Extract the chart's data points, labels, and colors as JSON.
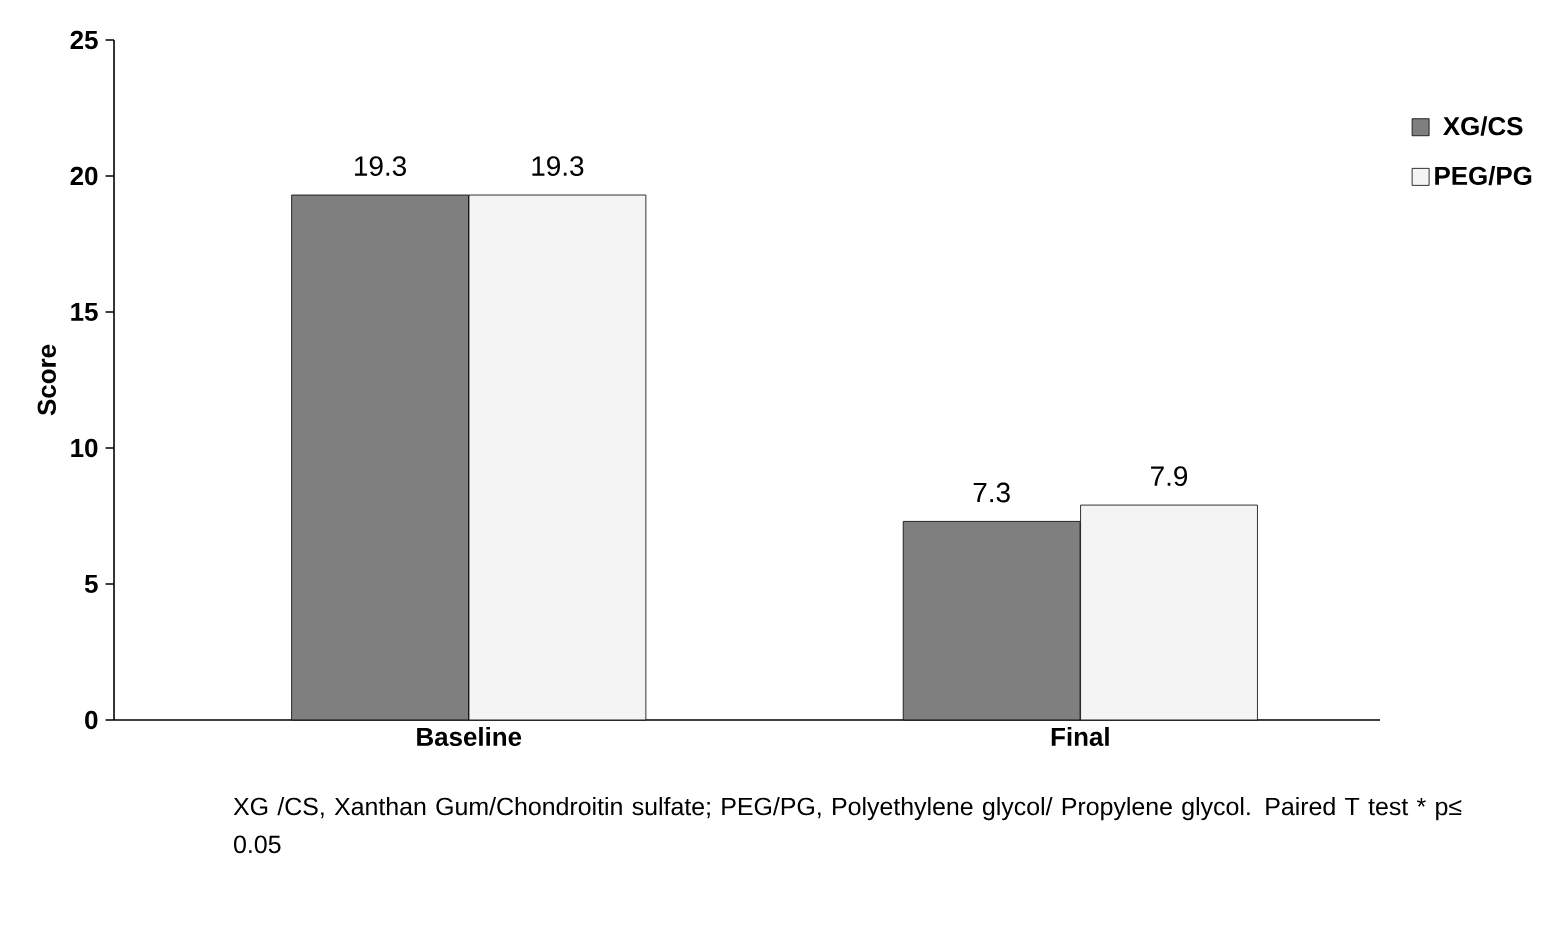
{
  "chart_data": {
    "type": "bar",
    "categories": [
      "Baseline",
      "Final"
    ],
    "series": [
      {
        "name": "XG/CS",
        "color": "#7f7f7f",
        "values": [
          19.3,
          7.3
        ]
      },
      {
        "name": "PEG/PG",
        "color": "#f4f4f4",
        "values": [
          19.3,
          7.9
        ]
      }
    ],
    "ylabel": "Score",
    "ylim": [
      0,
      25
    ],
    "yticks": [
      0,
      5,
      10,
      15,
      20,
      25
    ],
    "data_labels": true,
    "legend": "top right",
    "grid": false,
    "annotations": [
      "XG /CS, Xanthan Gum/Chondroitin sulfate; PEG/PG, Polyethylene glycol/ Propylene glycol. Paired T test * p≤ 0.05"
    ]
  }
}
